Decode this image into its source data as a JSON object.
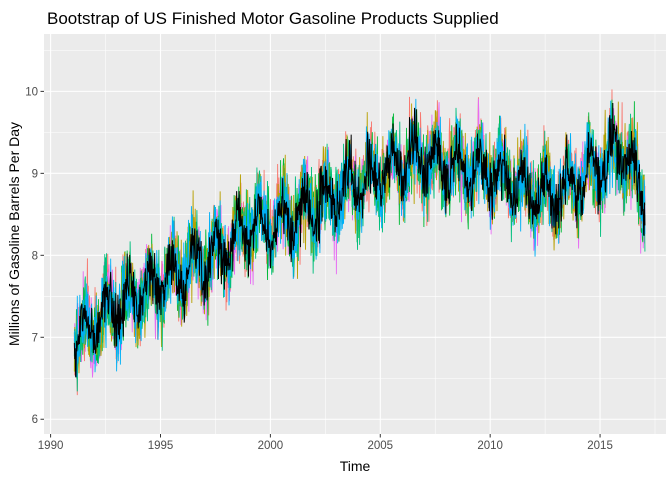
{
  "chart_data": {
    "type": "line",
    "title": "Bootstrap of US Finished Motor Gasoline Products Supplied",
    "xlabel": "Time",
    "ylabel": "Millions of Gasoline Barrels Per Day",
    "xlim": [
      1989.7,
      2018.0
    ],
    "ylim": [
      5.82,
      10.7
    ],
    "x_ticks": [
      1990,
      1995,
      2000,
      2005,
      2010,
      2015
    ],
    "x_tick_labels": [
      "1990",
      "1995",
      "2000",
      "2005",
      "2010",
      "2015"
    ],
    "y_ticks": [
      6,
      7,
      8,
      9,
      10
    ],
    "y_tick_labels": [
      "6",
      "7",
      "8",
      "9",
      "10"
    ],
    "grid": true,
    "legend": "none",
    "x_start": 1991.08,
    "x_end": 2017.05,
    "frequency": "weekly",
    "series": [
      {
        "role": "original",
        "color": "#000000",
        "trend": {
          "x": [
            1991.1,
            1992.0,
            1993.0,
            1994.0,
            1995.0,
            1996.0,
            1997.0,
            1998.0,
            1999.0,
            2000.0,
            2001.0,
            2002.0,
            2003.0,
            2004.0,
            2005.0,
            2006.0,
            2007.0,
            2008.0,
            2009.0,
            2010.0,
            2011.0,
            2012.0,
            2013.0,
            2014.0,
            2015.0,
            2016.0,
            2017.0
          ],
          "y": [
            6.9,
            7.2,
            7.35,
            7.55,
            7.65,
            7.8,
            7.95,
            8.1,
            8.35,
            8.4,
            8.45,
            8.6,
            8.75,
            8.9,
            9.0,
            9.1,
            9.2,
            9.1,
            9.05,
            9.05,
            8.9,
            8.75,
            8.75,
            8.9,
            9.1,
            9.3,
            8.7
          ]
        }
      },
      {
        "role": "bootstrap",
        "color": "#F8766D"
      },
      {
        "role": "bootstrap",
        "color": "#E76BF3"
      },
      {
        "role": "bootstrap",
        "color": "#00BA38"
      },
      {
        "role": "bootstrap",
        "color": "#B79F00"
      },
      {
        "role": "bootstrap",
        "color": "#00BF7D"
      },
      {
        "role": "bootstrap",
        "color": "#00B0F6"
      }
    ]
  }
}
